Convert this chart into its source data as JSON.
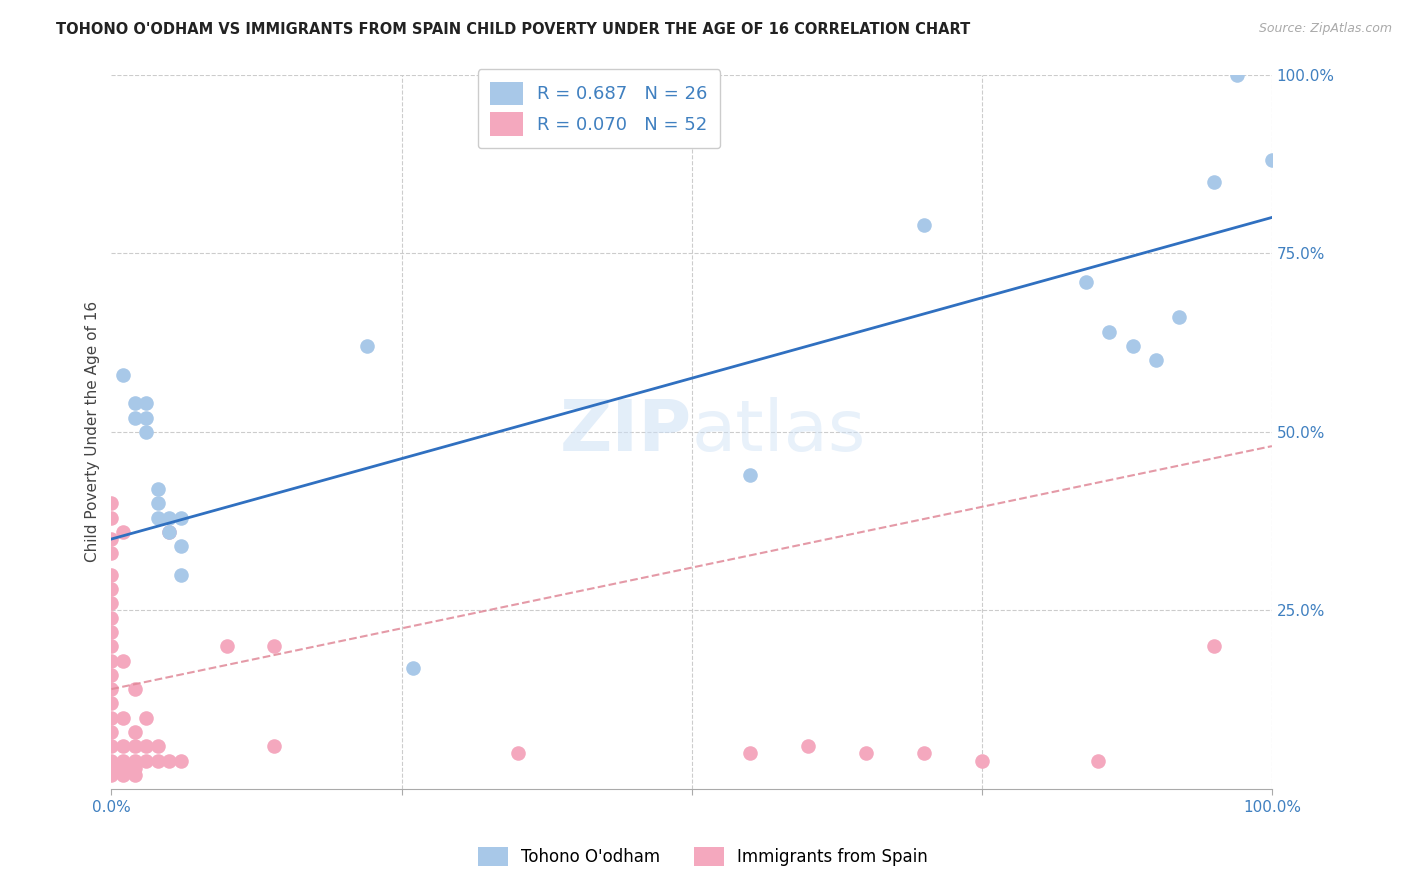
{
  "title": "TOHONO O'ODHAM VS IMMIGRANTS FROM SPAIN CHILD POVERTY UNDER THE AGE OF 16 CORRELATION CHART",
  "source": "Source: ZipAtlas.com",
  "ylabel": "Child Poverty Under the Age of 16",
  "legend_label1": "Tohono O'odham",
  "legend_label2": "Immigrants from Spain",
  "R1": "0.687",
  "N1": "26",
  "R2": "0.070",
  "N2": "52",
  "color_blue": "#a8c8e8",
  "color_pink": "#f4a8be",
  "line_blue": "#3070c0",
  "line_pink": "#e08898",
  "blue_points": [
    [
      0.01,
      0.58
    ],
    [
      0.02,
      0.54
    ],
    [
      0.02,
      0.52
    ],
    [
      0.03,
      0.54
    ],
    [
      0.03,
      0.52
    ],
    [
      0.03,
      0.5
    ],
    [
      0.04,
      0.42
    ],
    [
      0.04,
      0.4
    ],
    [
      0.04,
      0.38
    ],
    [
      0.05,
      0.38
    ],
    [
      0.05,
      0.36
    ],
    [
      0.06,
      0.38
    ],
    [
      0.06,
      0.34
    ],
    [
      0.06,
      0.3
    ],
    [
      0.22,
      0.62
    ],
    [
      0.26,
      0.17
    ],
    [
      0.7,
      0.79
    ],
    [
      0.84,
      0.71
    ],
    [
      0.86,
      0.64
    ],
    [
      0.88,
      0.62
    ],
    [
      0.9,
      0.6
    ],
    [
      0.92,
      0.66
    ],
    [
      0.95,
      0.85
    ],
    [
      0.97,
      1.0
    ],
    [
      1.0,
      0.88
    ],
    [
      0.55,
      0.44
    ]
  ],
  "pink_points": [
    [
      0.0,
      0.4
    ],
    [
      0.0,
      0.38
    ],
    [
      0.0,
      0.35
    ],
    [
      0.0,
      0.33
    ],
    [
      0.0,
      0.3
    ],
    [
      0.0,
      0.28
    ],
    [
      0.0,
      0.26
    ],
    [
      0.0,
      0.24
    ],
    [
      0.0,
      0.22
    ],
    [
      0.0,
      0.2
    ],
    [
      0.0,
      0.18
    ],
    [
      0.0,
      0.16
    ],
    [
      0.0,
      0.14
    ],
    [
      0.0,
      0.12
    ],
    [
      0.0,
      0.1
    ],
    [
      0.0,
      0.08
    ],
    [
      0.0,
      0.06
    ],
    [
      0.0,
      0.04
    ],
    [
      0.0,
      0.03
    ],
    [
      0.0,
      0.02
    ],
    [
      0.01,
      0.36
    ],
    [
      0.01,
      0.18
    ],
    [
      0.01,
      0.1
    ],
    [
      0.01,
      0.06
    ],
    [
      0.01,
      0.04
    ],
    [
      0.01,
      0.03
    ],
    [
      0.01,
      0.02
    ],
    [
      0.02,
      0.14
    ],
    [
      0.02,
      0.08
    ],
    [
      0.02,
      0.06
    ],
    [
      0.02,
      0.04
    ],
    [
      0.02,
      0.03
    ],
    [
      0.02,
      0.02
    ],
    [
      0.03,
      0.1
    ],
    [
      0.03,
      0.06
    ],
    [
      0.03,
      0.04
    ],
    [
      0.04,
      0.06
    ],
    [
      0.04,
      0.04
    ],
    [
      0.05,
      0.36
    ],
    [
      0.05,
      0.04
    ],
    [
      0.06,
      0.04
    ],
    [
      0.1,
      0.2
    ],
    [
      0.14,
      0.2
    ],
    [
      0.14,
      0.06
    ],
    [
      0.35,
      0.05
    ],
    [
      0.55,
      0.05
    ],
    [
      0.6,
      0.06
    ],
    [
      0.65,
      0.05
    ],
    [
      0.7,
      0.05
    ],
    [
      0.75,
      0.04
    ],
    [
      0.85,
      0.04
    ],
    [
      0.95,
      0.2
    ]
  ],
  "blue_line": [
    0.0,
    0.35,
    1.0,
    0.8
  ],
  "pink_line": [
    0.0,
    0.14,
    1.0,
    0.48
  ]
}
